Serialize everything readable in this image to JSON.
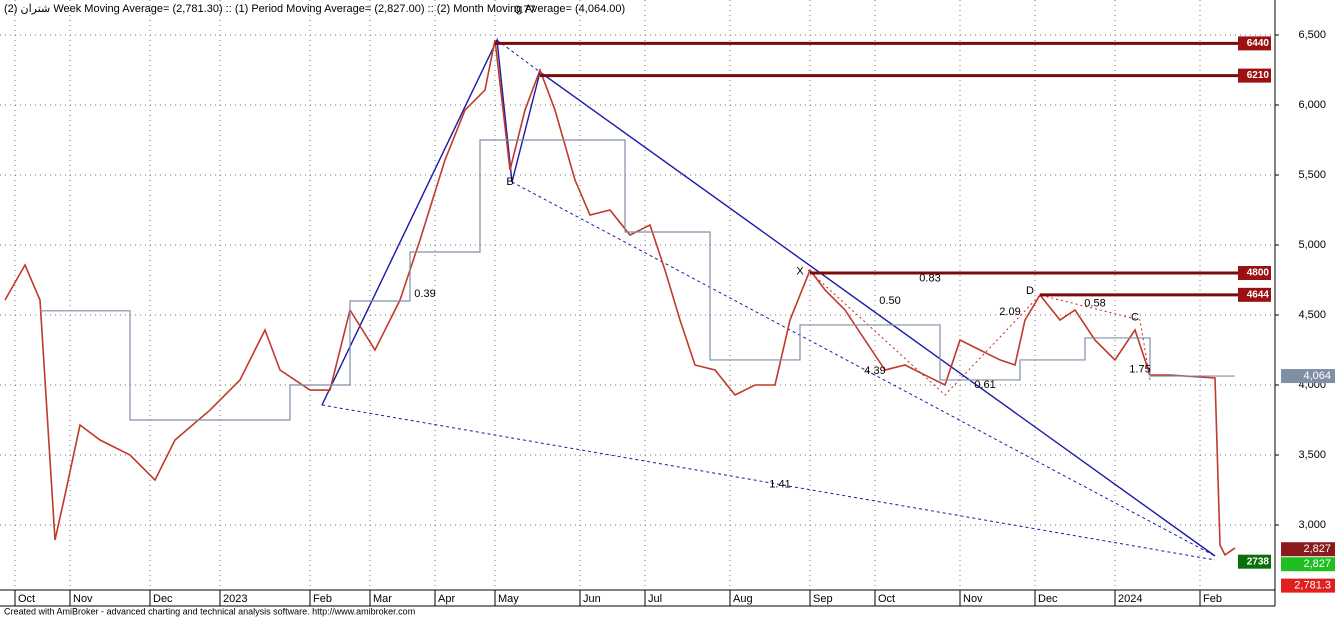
{
  "chart_data": {
    "type": "line",
    "title": "شتران (2) Week Moving Average= (2,781.30) :: (1) Period Moving Average= (2,827.00) :: (2) Month Moving Average= (4,064.00)",
    "xlim": [
      0,
      255
    ],
    "xticks": [
      {
        "value": 3,
        "label": "Oct"
      },
      {
        "value": 14,
        "label": "Nov"
      },
      {
        "value": 30,
        "label": "Dec"
      },
      {
        "value": 44,
        "label": "2023"
      },
      {
        "value": 62,
        "label": "Feb"
      },
      {
        "value": 74,
        "label": "Mar"
      },
      {
        "value": 87,
        "label": "Apr"
      },
      {
        "value": 99,
        "label": "May"
      },
      {
        "value": 116,
        "label": "Jun"
      },
      {
        "value": 129,
        "label": "Jul"
      },
      {
        "value": 146,
        "label": "Aug"
      },
      {
        "value": 162,
        "label": "Sep"
      },
      {
        "value": 175,
        "label": "Oct"
      },
      {
        "value": 192,
        "label": "Nov"
      },
      {
        "value": 207,
        "label": "Dec"
      },
      {
        "value": 223,
        "label": "2024"
      },
      {
        "value": 240,
        "label": "Feb"
      }
    ],
    "ylim": [
      2550,
      6750
    ],
    "yticks": [
      {
        "value": 3000,
        "label": "3,000"
      },
      {
        "value": 3500,
        "label": "3,500"
      },
      {
        "value": 4000,
        "label": "4,000"
      },
      {
        "value": 4500,
        "label": "4,500"
      },
      {
        "value": 5000,
        "label": "5,000"
      },
      {
        "value": 5500,
        "label": "5,500"
      },
      {
        "value": 6000,
        "label": "6,000"
      },
      {
        "value": 6500,
        "label": "6,500"
      }
    ],
    "grid": true,
    "series": [
      {
        "color": "#c0392b",
        "step": false,
        "x": [
          1,
          5,
          8,
          11,
          13,
          16,
          20,
          26,
          31,
          35,
          42,
          48,
          53,
          56,
          62,
          66,
          70,
          75,
          80,
          84,
          89,
          93,
          97,
          99,
          102,
          105,
          108,
          111,
          115,
          118,
          122,
          126,
          130,
          133,
          136,
          139,
          143,
          147,
          151,
          155,
          158,
          162,
          165,
          169,
          173,
          177,
          181,
          185,
          189,
          192,
          196,
          200,
          203,
          205,
          208,
          212,
          215,
          219,
          223,
          227,
          230,
          234,
          243,
          244,
          245,
          247
        ],
        "values": [
          4607,
          4857,
          4607,
          2893,
          3214,
          3714,
          3607,
          3500,
          3321,
          3607,
          3821,
          4036,
          4393,
          4107,
          3964,
          3964,
          4536,
          4250,
          4607,
          5036,
          5607,
          5964,
          6107,
          6464,
          5536,
          5964,
          6250,
          5964,
          5464,
          5214,
          5250,
          5071,
          5143,
          4821,
          4464,
          4143,
          4107,
          3929,
          4000,
          4000,
          4464,
          4821,
          4679,
          4536,
          4321,
          4107,
          4143,
          4071,
          4000,
          4321,
          4250,
          4179,
          4143,
          4464,
          4643,
          4464,
          4536,
          4321,
          4179,
          4393,
          4071,
          4071,
          4050,
          2857,
          2786,
          2836
        ]
      },
      {
        "color": "#7f8fa6",
        "step": true,
        "x": [
          8,
          26,
          58,
          70,
          82,
          96,
          125,
          142,
          160,
          188,
          204,
          217,
          230,
          247
        ],
        "values": [
          4530,
          3750,
          4000,
          4600,
          4950,
          5750,
          5093,
          4179,
          4429,
          4036,
          4179,
          4336,
          4064,
          4064
        ]
      }
    ],
    "levels": [
      {
        "value": 6440,
        "from": 99
      },
      {
        "value": 6210,
        "from": 108
      },
      {
        "value": 4800,
        "from": 162
      },
      {
        "value": 4644,
        "from": 208
      }
    ],
    "last_values": [
      {
        "value": 4064,
        "label": "4,064",
        "color": "#7f8fa6"
      },
      {
        "value": 2827,
        "label": "2,827",
        "color": "#8b1a1a"
      },
      {
        "value": 2827,
        "label": "2,827",
        "color": "#1fbf1f"
      },
      {
        "value": 2781.3,
        "label": "2,781.3",
        "color": "#e02020"
      },
      {
        "value": 2738,
        "color": "#0a6e0a"
      }
    ],
    "annotations": [
      {
        "text": "0.77",
        "x": 105,
        "y": 6850,
        "color": "#1a1aa8"
      },
      {
        "text": "0.39",
        "x": 85,
        "y": 4650,
        "color": "#1a1aa8"
      },
      {
        "text": "1.41",
        "x": 156,
        "y": 3290,
        "color": "#1a1aa8"
      },
      {
        "text": "4.39",
        "x": 175,
        "y": 4100,
        "color": "#1a1aa8"
      },
      {
        "text": "0.83",
        "x": 186,
        "y": 4760,
        "color": "#cc2222"
      },
      {
        "text": "0.50",
        "x": 178,
        "y": 4600,
        "color": "#cc2222"
      },
      {
        "text": "2.09",
        "x": 202,
        "y": 4520,
        "color": "#cc2222"
      },
      {
        "text": "0.61",
        "x": 197,
        "y": 4000,
        "color": "#cc2222"
      },
      {
        "text": "0.58",
        "x": 219,
        "y": 4580,
        "color": "#8e44ad"
      },
      {
        "text": "1.75",
        "x": 228,
        "y": 4110,
        "color": "#8e44ad"
      },
      {
        "text": "B",
        "x": 102,
        "y": 5450,
        "color": "#1a1aa8"
      },
      {
        "text": "X",
        "x": 160,
        "y": 4810,
        "color": "#cc2222"
      },
      {
        "text": "D",
        "x": 206,
        "y": 4670,
        "color": "#cc2222"
      },
      {
        "text": "C",
        "x": 227,
        "y": 4480,
        "color": "#8e44ad"
      }
    ]
  },
  "footer": "Created with AmiBroker - advanced charting and technical analysis software. http://www.amibroker.com"
}
